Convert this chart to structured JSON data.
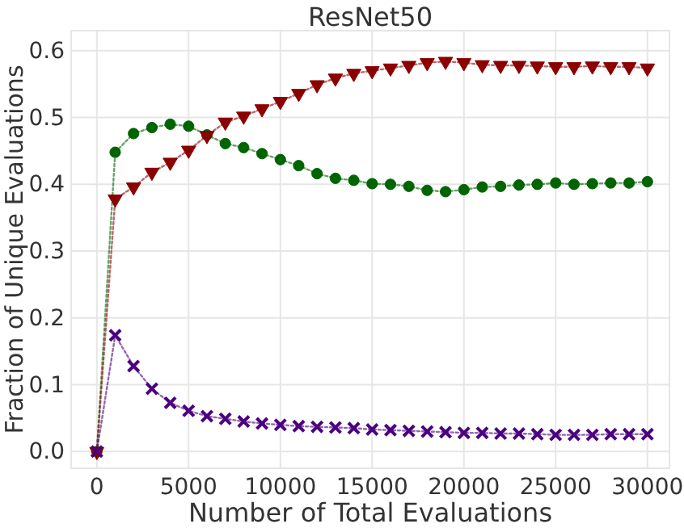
{
  "chart_data": {
    "type": "line",
    "title": "ResNet50",
    "xlabel": "Number of Total Evaluations",
    "ylabel": "Fraction of Unique Evaluations",
    "x": [
      0,
      1000,
      2000,
      3000,
      4000,
      5000,
      6000,
      7000,
      8000,
      9000,
      10000,
      11000,
      12000,
      13000,
      14000,
      15000,
      16000,
      17000,
      18000,
      19000,
      20000,
      21000,
      22000,
      23000,
      24000,
      25000,
      26000,
      27000,
      28000,
      29000,
      30000
    ],
    "series": [
      {
        "color": "#006400",
        "marker": "circle",
        "values": [
          0,
          0.448,
          0.476,
          0.485,
          0.49,
          0.487,
          0.474,
          0.461,
          0.455,
          0.446,
          0.437,
          0.428,
          0.416,
          0.409,
          0.406,
          0.401,
          0.4,
          0.397,
          0.391,
          0.389,
          0.392,
          0.396,
          0.397,
          0.399,
          0.4,
          0.402,
          0.4,
          0.401,
          0.402,
          0.402,
          0.404
        ]
      },
      {
        "color": "#8b0000",
        "marker": "triangle",
        "values": [
          0,
          0.378,
          0.396,
          0.418,
          0.433,
          0.451,
          0.473,
          0.493,
          0.502,
          0.513,
          0.524,
          0.536,
          0.549,
          0.559,
          0.566,
          0.57,
          0.574,
          0.578,
          0.582,
          0.584,
          0.582,
          0.579,
          0.578,
          0.578,
          0.577,
          0.576,
          0.576,
          0.577,
          0.576,
          0.576,
          0.574
        ]
      },
      {
        "color": "#4b0082",
        "marker": "cross",
        "values": [
          0,
          0.174,
          0.128,
          0.094,
          0.073,
          0.061,
          0.053,
          0.049,
          0.045,
          0.042,
          0.04,
          0.038,
          0.037,
          0.036,
          0.035,
          0.033,
          0.032,
          0.031,
          0.03,
          0.029,
          0.028,
          0.028,
          0.027,
          0.027,
          0.026,
          0.025,
          0.025,
          0.025,
          0.026,
          0.026,
          0.026
        ]
      }
    ],
    "xlim": [
      -1400,
      31200
    ],
    "ylim": [
      -0.025,
      0.63
    ],
    "xticks": [
      0,
      5000,
      10000,
      15000,
      20000,
      25000,
      30000
    ],
    "yticks": [
      {
        "value": 0,
        "label": "0.0"
      },
      {
        "value": 0.1,
        "label": "0.1"
      },
      {
        "value": 0.2,
        "label": "0.2"
      },
      {
        "value": 0.3,
        "label": "0.3"
      },
      {
        "value": 0.4,
        "label": "0.4"
      },
      {
        "value": 0.5,
        "label": "0.5"
      },
      {
        "value": 0.6,
        "label": "0.6"
      }
    ],
    "grid": true,
    "line_style": "dotted"
  }
}
